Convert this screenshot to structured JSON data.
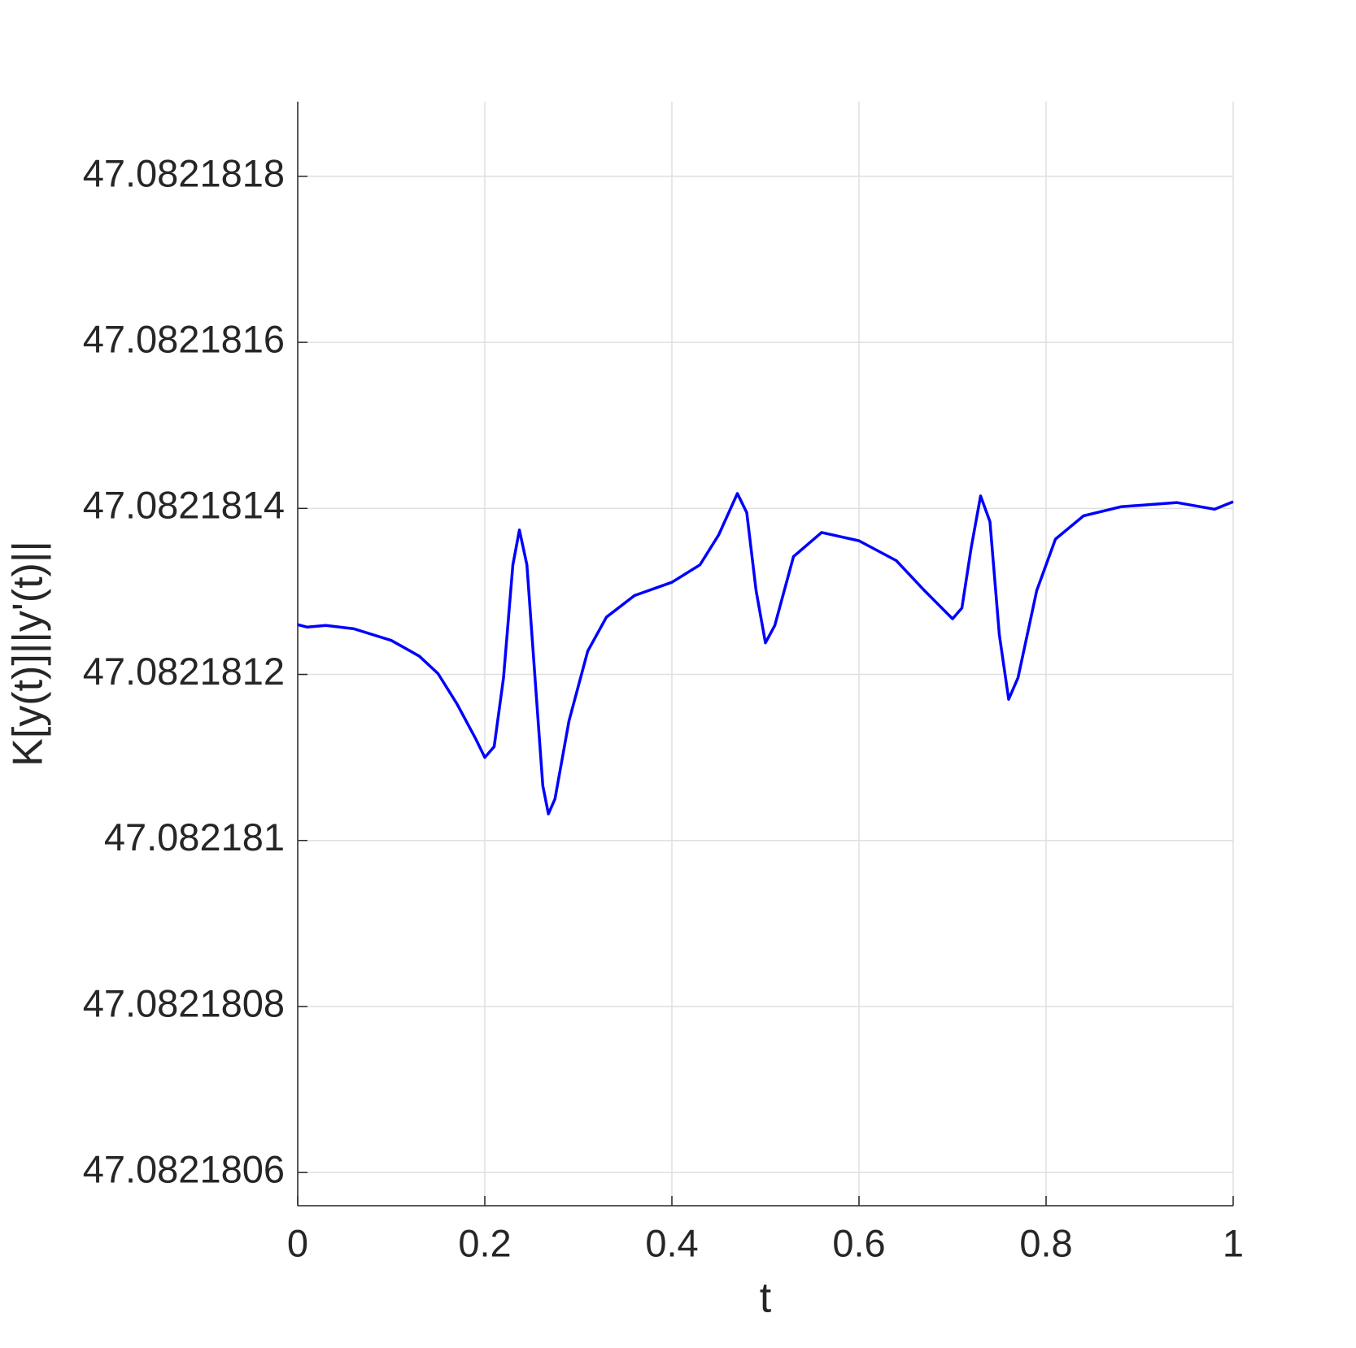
{
  "chart_data": {
    "type": "line",
    "xlabel": "t",
    "ylabel": "K[y(t)]||y'(t)||",
    "x": [
      0,
      0.01,
      0.03,
      0.06,
      0.1,
      0.13,
      0.15,
      0.17,
      0.19,
      0.2,
      0.21,
      0.22,
      0.23,
      0.237,
      0.245,
      0.255,
      0.262,
      0.268,
      0.275,
      0.29,
      0.31,
      0.33,
      0.36,
      0.4,
      0.43,
      0.45,
      0.47,
      0.48,
      0.49,
      0.5,
      0.51,
      0.53,
      0.56,
      0.6,
      0.64,
      0.67,
      0.7,
      0.71,
      0.72,
      0.73,
      0.74,
      0.75,
      0.76,
      0.77,
      0.79,
      0.81,
      0.84,
      0.88,
      0.94,
      0.98,
      1.0
    ],
    "series": [
      {
        "color": "#0000ff",
        "values": [
          47.08218126,
          47.082181257,
          47.082181259,
          47.082181255,
          47.082181241,
          47.082181222,
          47.082181201,
          47.082181165,
          47.082181123,
          47.0821811,
          47.082181113,
          47.082181196,
          47.082181332,
          47.082181374,
          47.082181332,
          47.082181175,
          47.082181066,
          47.082181032,
          47.08218105,
          47.082181144,
          47.082181228,
          47.082181269,
          47.082181295,
          47.082181311,
          47.082181332,
          47.082181368,
          47.082181418,
          47.082181395,
          47.082181301,
          47.082181238,
          47.082181259,
          47.082181342,
          47.082181371,
          47.082181361,
          47.082181337,
          47.082181301,
          47.082181267,
          47.08218128,
          47.082181353,
          47.082181415,
          47.082181384,
          47.082181248,
          47.08218117,
          47.082181196,
          47.082181301,
          47.082181363,
          47.082181391,
          47.082181402,
          47.082181407,
          47.082181399,
          47.082181408
        ]
      }
    ],
    "xlim": [
      0,
      1
    ],
    "xticks": [
      0,
      0.2,
      0.4,
      0.6,
      0.8,
      1
    ],
    "ylim": [
      47.08218056,
      47.08218189
    ],
    "yticks": [
      47.0821806,
      47.0821808,
      47.082181,
      47.0821812,
      47.0821814,
      47.0821816,
      47.0821818
    ],
    "grid": true
  }
}
